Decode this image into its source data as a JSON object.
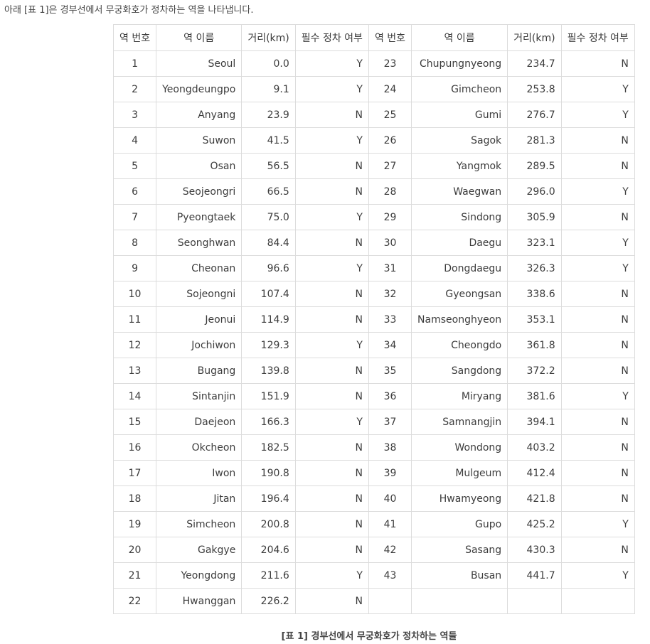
{
  "intro_text": "아래 [표 1]은 경부선에서 무궁화호가 정차하는 역을 나타냅니다.",
  "table": {
    "headers": [
      "역 번호",
      "역 이름",
      "거리(km)",
      "필수 정차 여부",
      "역 번호",
      "역 이름",
      "거리(km)",
      "필수 정차 여부"
    ],
    "rows": [
      [
        "1",
        "Seoul",
        "0.0",
        "Y",
        "23",
        "Chupungnyeong",
        "234.7",
        "N"
      ],
      [
        "2",
        "Yeongdeungpo",
        "9.1",
        "Y",
        "24",
        "Gimcheon",
        "253.8",
        "Y"
      ],
      [
        "3",
        "Anyang",
        "23.9",
        "N",
        "25",
        "Gumi",
        "276.7",
        "Y"
      ],
      [
        "4",
        "Suwon",
        "41.5",
        "Y",
        "26",
        "Sagok",
        "281.3",
        "N"
      ],
      [
        "5",
        "Osan",
        "56.5",
        "N",
        "27",
        "Yangmok",
        "289.5",
        "N"
      ],
      [
        "6",
        "Seojeongri",
        "66.5",
        "N",
        "28",
        "Waegwan",
        "296.0",
        "Y"
      ],
      [
        "7",
        "Pyeongtaek",
        "75.0",
        "Y",
        "29",
        "Sindong",
        "305.9",
        "N"
      ],
      [
        "8",
        "Seonghwan",
        "84.4",
        "N",
        "30",
        "Daegu",
        "323.1",
        "Y"
      ],
      [
        "9",
        "Cheonan",
        "96.6",
        "Y",
        "31",
        "Dongdaegu",
        "326.3",
        "Y"
      ],
      [
        "10",
        "Sojeongni",
        "107.4",
        "N",
        "32",
        "Gyeongsan",
        "338.6",
        "N"
      ],
      [
        "11",
        "Jeonui",
        "114.9",
        "N",
        "33",
        "Namseonghyeon",
        "353.1",
        "N"
      ],
      [
        "12",
        "Jochiwon",
        "129.3",
        "Y",
        "34",
        "Cheongdo",
        "361.8",
        "N"
      ],
      [
        "13",
        "Bugang",
        "139.8",
        "N",
        "35",
        "Sangdong",
        "372.2",
        "N"
      ],
      [
        "14",
        "Sintanjin",
        "151.9",
        "N",
        "36",
        "Miryang",
        "381.6",
        "Y"
      ],
      [
        "15",
        "Daejeon",
        "166.3",
        "Y",
        "37",
        "Samnangjin",
        "394.1",
        "N"
      ],
      [
        "16",
        "Okcheon",
        "182.5",
        "N",
        "38",
        "Wondong",
        "403.2",
        "N"
      ],
      [
        "17",
        "Iwon",
        "190.8",
        "N",
        "39",
        "Mulgeum",
        "412.4",
        "N"
      ],
      [
        "18",
        "Jitan",
        "196.4",
        "N",
        "40",
        "Hwamyeong",
        "421.8",
        "N"
      ],
      [
        "19",
        "Simcheon",
        "200.8",
        "N",
        "41",
        "Gupo",
        "425.2",
        "Y"
      ],
      [
        "20",
        "Gakgye",
        "204.6",
        "N",
        "42",
        "Sasang",
        "430.3",
        "N"
      ],
      [
        "21",
        "Yeongdong",
        "211.6",
        "Y",
        "43",
        "Busan",
        "441.7",
        "Y"
      ],
      [
        "22",
        "Hwanggan",
        "226.2",
        "N",
        "",
        "",
        "",
        ""
      ]
    ]
  },
  "caption": "[표 1] 경부선에서 무궁화호가 정차하는 역들"
}
